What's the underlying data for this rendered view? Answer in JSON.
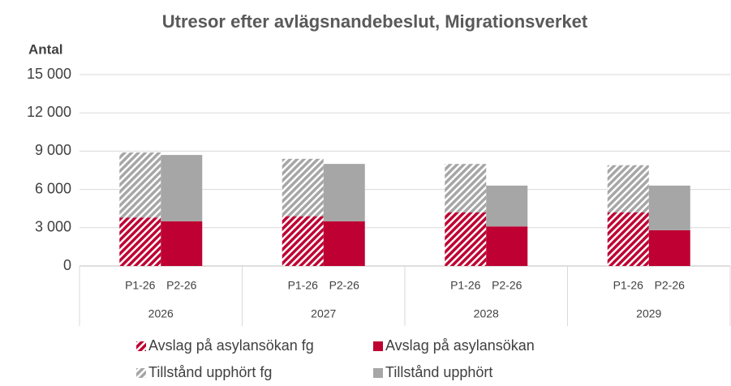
{
  "chart_data": {
    "type": "stacked-bar",
    "title": "Utresor efter avlägsnandebeslut, Migrationsverket",
    "y_label": "Antal",
    "categories": [
      "P1-26",
      "P2-26",
      "P1-26",
      "P2-26",
      "P1-26",
      "P2-26",
      "P1-26",
      "P2-26"
    ],
    "groups": [
      "2026",
      "2027",
      "2028",
      "2029"
    ],
    "series": [
      {
        "name": "Avslag på asylansökan fg",
        "color": "#be0032",
        "hatched": true,
        "values": [
          3800,
          null,
          3900,
          null,
          4200,
          null,
          4200,
          null
        ]
      },
      {
        "name": "Avslag på asylansökan",
        "color": "#be0032",
        "hatched": false,
        "values": [
          null,
          3500,
          null,
          3500,
          null,
          3100,
          null,
          2800
        ]
      },
      {
        "name": "Tillstånd upphört fg",
        "color": "#a6a6a6",
        "hatched": true,
        "values": [
          5100,
          null,
          4500,
          null,
          3800,
          null,
          3700,
          null
        ]
      },
      {
        "name": "Tillstånd upphört",
        "color": "#a6a6a6",
        "hatched": false,
        "values": [
          null,
          5200,
          null,
          4500,
          null,
          3200,
          null,
          3500
        ]
      }
    ],
    "ylim": [
      0,
      15000
    ],
    "yticks": [
      0,
      {
        "value": 3000,
        "label": "3 000"
      },
      {
        "value": 6000,
        "label": "6 000"
      },
      {
        "value": 9000,
        "label": "9 000"
      },
      {
        "value": 12000,
        "label": "12 000"
      },
      {
        "value": 15000,
        "label": "15 000"
      }
    ],
    "grid": true,
    "legend": "bottom"
  }
}
